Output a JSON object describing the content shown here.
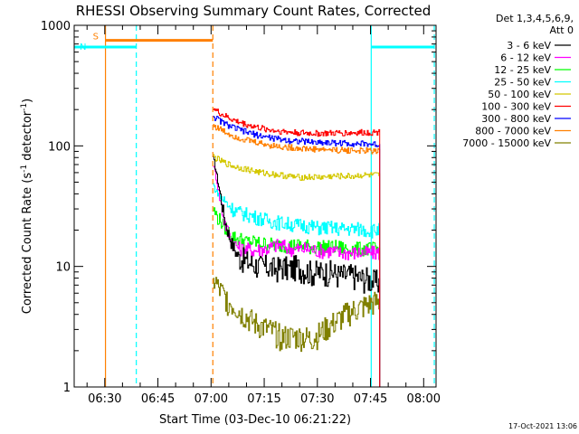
{
  "chart_data": {
    "type": "line",
    "title": "RHESSI Observing Summary Count Rates, Corrected",
    "xlabel": "Start Time (03-Dec-10 06:21:22)",
    "ylabel_parts": [
      "Corrected Count Rate (s",
      "-1",
      " detector",
      "-1",
      ")"
    ],
    "y_scale": "log",
    "ylim": [
      1,
      1000
    ],
    "y_ticks": [
      "1",
      "10",
      "100",
      "1000"
    ],
    "xlim_minutes": [
      381.37,
      483.5
    ],
    "x_ticks": [
      {
        "minute": 390,
        "label": "06:30"
      },
      {
        "minute": 405,
        "label": "06:45"
      },
      {
        "minute": 420,
        "label": "07:00"
      },
      {
        "minute": 435,
        "label": "07:15"
      },
      {
        "minute": 450,
        "label": "07:30"
      },
      {
        "minute": 465,
        "label": "07:45"
      },
      {
        "minute": 480,
        "label": "08:00"
      }
    ],
    "legend_header": [
      "Det 1,3,4,5,6,9,",
      "Att 0"
    ],
    "legend_placement": "right",
    "series": [
      {
        "name": "3 - 6 keV",
        "color": "#000000",
        "x": [
          420.6,
          421,
          421.5,
          422,
          422.5,
          423,
          423.5,
          424,
          425,
          426,
          427,
          428,
          430,
          432,
          434,
          436,
          438,
          440,
          442,
          444,
          446,
          448,
          450,
          452,
          454,
          456,
          458,
          460,
          462,
          464,
          466,
          467.6
        ],
        "y": [
          78,
          70,
          58,
          48,
          40,
          33,
          27,
          23,
          18,
          15,
          13,
          12,
          11,
          10.5,
          10,
          10,
          9.5,
          10,
          9.5,
          10,
          9.5,
          9,
          9,
          9,
          9,
          8.5,
          8.5,
          8.5,
          8,
          8,
          7.5,
          7.5
        ]
      },
      {
        "name": "6 - 12 keV",
        "color": "#ff00ff",
        "x": [
          420.6,
          421,
          421.5,
          422,
          422.5,
          423,
          423.5,
          424,
          425,
          426,
          427,
          428,
          430,
          432,
          434,
          436,
          438,
          440,
          442,
          444,
          446,
          448,
          450,
          452,
          454,
          456,
          458,
          460,
          462,
          464,
          466,
          467.6
        ],
        "y": [
          70,
          62,
          52,
          43,
          36,
          30,
          25,
          22,
          18,
          16,
          15,
          14,
          14,
          13.5,
          14,
          14,
          15,
          15,
          14,
          14,
          14,
          14,
          13.5,
          13.5,
          13.5,
          13,
          13,
          13,
          13,
          13,
          13,
          13
        ]
      },
      {
        "name": "12 - 25 keV",
        "color": "#00ff00",
        "x": [
          420.6,
          421,
          422,
          423,
          424,
          425,
          426,
          427,
          428,
          430,
          432,
          434,
          436,
          438,
          440,
          442,
          444,
          446,
          448,
          450,
          452,
          454,
          456,
          458,
          460,
          462,
          464,
          466,
          467.6
        ],
        "y": [
          30,
          28,
          25,
          23,
          21,
          19,
          18,
          17,
          17,
          16,
          16,
          15.5,
          15.5,
          15,
          15,
          15,
          15,
          15,
          14.5,
          14.5,
          14.5,
          14.5,
          14.5,
          14,
          14,
          14,
          14,
          14,
          14
        ]
      },
      {
        "name": "25 - 50 keV",
        "color": "#00ffff",
        "x": [
          420.6,
          421,
          422,
          423,
          424,
          425,
          426,
          427,
          428,
          430,
          432,
          434,
          436,
          438,
          440,
          442,
          444,
          446,
          448,
          450,
          452,
          454,
          456,
          458,
          460,
          462,
          464,
          466,
          467.6
        ],
        "y": [
          48,
          44,
          40,
          37,
          34,
          32,
          30,
          29,
          28,
          27,
          26,
          25,
          24,
          23.5,
          23,
          22.5,
          22,
          22,
          21.5,
          21,
          21,
          21,
          20.5,
          20.5,
          20.5,
          20.5,
          20,
          20,
          20
        ]
      },
      {
        "name": "50 - 100 keV",
        "color": "#d4c800",
        "x": [
          420.6,
          421,
          422,
          423,
          424,
          425,
          426,
          427,
          428,
          430,
          432,
          434,
          436,
          438,
          440,
          442,
          444,
          446,
          448,
          450,
          452,
          454,
          456,
          458,
          460,
          462,
          464,
          466,
          467.6
        ],
        "y": [
          82,
          80,
          77,
          74,
          72,
          70,
          68,
          67,
          66,
          64,
          62,
          60,
          59,
          58,
          57,
          56,
          55,
          55,
          55,
          55,
          55,
          56,
          56,
          56,
          56,
          57,
          57,
          57,
          57
        ]
      },
      {
        "name": "100 - 300 keV",
        "color": "#ff0000",
        "x": [
          420.6,
          421,
          422,
          423,
          424,
          425,
          426,
          427,
          428,
          430,
          432,
          434,
          436,
          438,
          440,
          442,
          444,
          446,
          448,
          450,
          452,
          454,
          456,
          458,
          460,
          462,
          464,
          466,
          467.6
        ],
        "y": [
          210,
          200,
          190,
          182,
          176,
          170,
          165,
          160,
          157,
          150,
          145,
          140,
          137,
          134,
          132,
          130,
          129,
          128,
          127,
          127,
          127,
          127,
          128,
          128,
          128,
          129,
          129,
          130,
          130
        ]
      },
      {
        "name": "300 - 800 keV",
        "color": "#0000ff",
        "x": [
          420.6,
          421,
          422,
          423,
          424,
          425,
          426,
          427,
          428,
          430,
          432,
          434,
          436,
          438,
          440,
          442,
          444,
          446,
          448,
          450,
          452,
          454,
          456,
          458,
          460,
          462,
          464,
          466,
          467.6
        ],
        "y": [
          180,
          172,
          165,
          158,
          152,
          147,
          143,
          139,
          136,
          130,
          125,
          121,
          118,
          115,
          113,
          111,
          110,
          109,
          108,
          107,
          107,
          106,
          106,
          105,
          105,
          104,
          104,
          103,
          102
        ]
      },
      {
        "name": "800 - 7000 keV",
        "color": "#ff8000",
        "x": [
          420.6,
          421,
          422,
          423,
          424,
          425,
          426,
          427,
          428,
          430,
          432,
          434,
          436,
          438,
          440,
          442,
          444,
          446,
          448,
          450,
          452,
          454,
          456,
          458,
          460,
          462,
          464,
          466,
          467.6
        ],
        "y": [
          150,
          145,
          140,
          135,
          130,
          126,
          122,
          119,
          116,
          112,
          108,
          105,
          102,
          100,
          98,
          97,
          96,
          95,
          94,
          94,
          93,
          93,
          92,
          92,
          92,
          91,
          91,
          91,
          90
        ]
      },
      {
        "name": "7000 - 15000 keV",
        "color": "#808000",
        "x": [
          420.6,
          421,
          421.5,
          422,
          423,
          424,
          425,
          426,
          427,
          428,
          430,
          432,
          434,
          436,
          438,
          440,
          442,
          444,
          446,
          448,
          450,
          452,
          454,
          456,
          458,
          460,
          462,
          464,
          466,
          467.6
        ],
        "y": [
          7,
          8,
          7,
          6.5,
          6,
          5.5,
          5,
          4.8,
          4.6,
          4.2,
          3.8,
          3.4,
          3.2,
          3,
          2.8,
          2.6,
          2.6,
          2.6,
          2.6,
          2.5,
          2.7,
          3,
          3.3,
          3.6,
          4,
          4.3,
          4.5,
          4.8,
          5,
          5
        ]
      }
    ],
    "status_bars": [
      {
        "label": "S",
        "color": "#ff8000",
        "x_start": 390.2,
        "x_end": 420.5,
        "y": 750
      },
      {
        "label": "N",
        "color": "#00ffff",
        "x_start": 381.37,
        "x_end": 398.9,
        "y": 660
      },
      {
        "label": "",
        "color": "#00ffff",
        "x_start": 465.2,
        "x_end": 483.0,
        "y": 660
      }
    ],
    "vertical_markers": [
      {
        "minute": 390.2,
        "color": "#ff8000",
        "style": "solid"
      },
      {
        "minute": 398.9,
        "color": "#00ffff",
        "style": "dashed"
      },
      {
        "minute": 420.5,
        "color": "#ff8000",
        "style": "dashed"
      },
      {
        "minute": 465.2,
        "color": "#00ffff",
        "style": "solid"
      },
      {
        "minute": 483.0,
        "color": "#00ffff",
        "style": "dashed"
      }
    ],
    "footer_timestamp": "17-Oct-2021 13:06"
  }
}
